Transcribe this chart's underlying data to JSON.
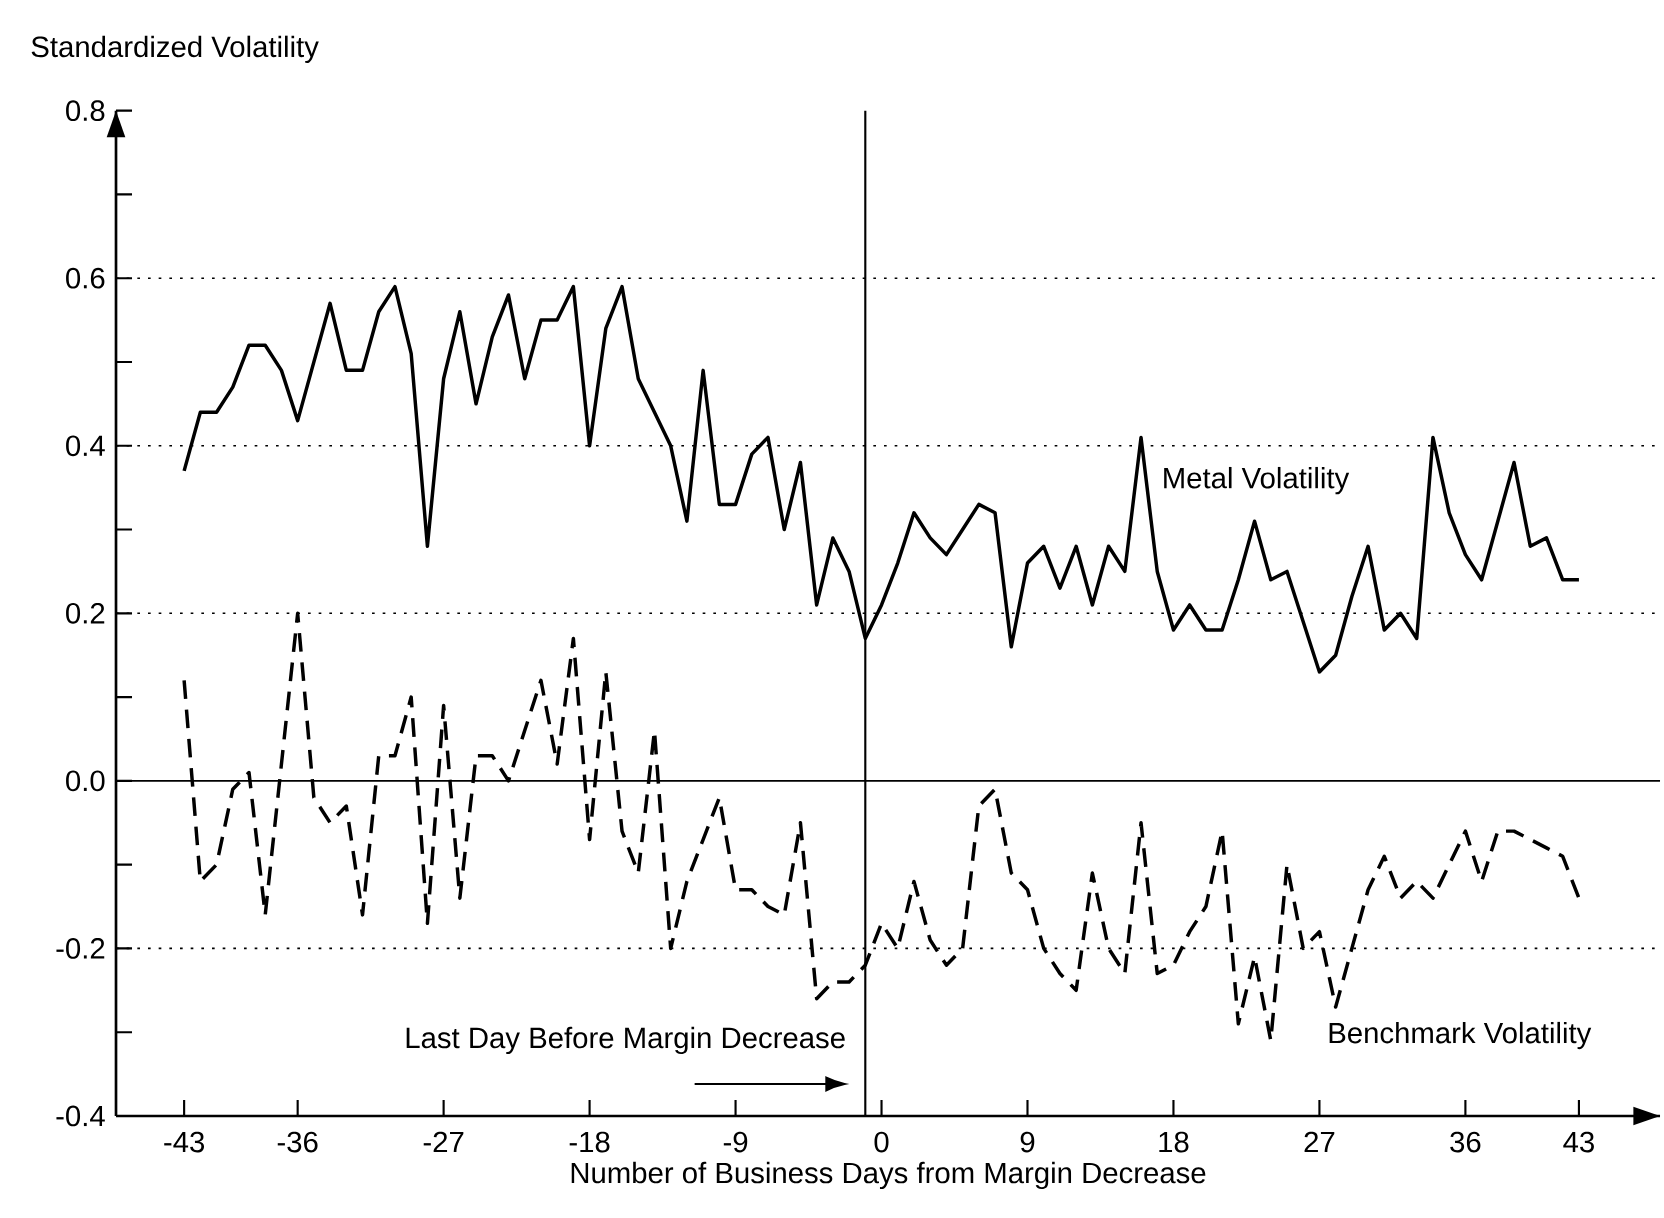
{
  "chart_data": {
    "type": "line",
    "xlabel": "Number of Business Days from Margin Decrease",
    "ylabel": "Standardized Volatility",
    "x": [
      -43,
      -42,
      -41,
      -40,
      -39,
      -38,
      -37,
      -36,
      -35,
      -34,
      -33,
      -32,
      -31,
      -30,
      -29,
      -28,
      -27,
      -26,
      -25,
      -24,
      -23,
      -22,
      -21,
      -20,
      -19,
      -18,
      -17,
      -16,
      -15,
      -14,
      -13,
      -12,
      -11,
      -10,
      -9,
      -8,
      -7,
      -6,
      -5,
      -4,
      -3,
      -2,
      -1,
      0,
      1,
      2,
      3,
      4,
      5,
      6,
      7,
      8,
      9,
      10,
      11,
      12,
      13,
      14,
      15,
      16,
      17,
      18,
      19,
      20,
      21,
      22,
      23,
      24,
      25,
      26,
      27,
      28,
      29,
      30,
      31,
      32,
      33,
      34,
      35,
      36,
      37,
      38,
      39,
      40,
      41,
      42,
      43
    ],
    "series": [
      {
        "name": "Metal Volatility",
        "color": "#000000",
        "line_style": "solid",
        "values": [
          0.37,
          0.44,
          0.44,
          0.47,
          0.52,
          0.52,
          0.49,
          0.43,
          0.5,
          0.57,
          0.49,
          0.49,
          0.56,
          0.59,
          0.51,
          0.28,
          0.48,
          0.56,
          0.45,
          0.53,
          0.58,
          0.48,
          0.55,
          0.55,
          0.59,
          0.4,
          0.54,
          0.59,
          0.48,
          0.44,
          0.4,
          0.31,
          0.49,
          0.33,
          0.33,
          0.39,
          0.41,
          0.3,
          0.38,
          0.21,
          0.29,
          0.25,
          0.17,
          0.21,
          0.26,
          0.32,
          0.29,
          0.27,
          0.3,
          0.33,
          0.32,
          0.16,
          0.26,
          0.28,
          0.23,
          0.28,
          0.21,
          0.28,
          0.25,
          0.41,
          0.25,
          0.18,
          0.21,
          0.18,
          0.18,
          0.24,
          0.31,
          0.24,
          0.25,
          0.19,
          0.13,
          0.15,
          0.22,
          0.28,
          0.18,
          0.2,
          0.17,
          0.41,
          0.32,
          0.27,
          0.24,
          0.31,
          0.38,
          0.28,
          0.29,
          0.24,
          0.24
        ]
      },
      {
        "name": "Benchmark Volatility",
        "color": "#000000",
        "line_style": "dashed",
        "values": [
          0.12,
          -0.12,
          -0.1,
          -0.01,
          0.01,
          -0.16,
          0.02,
          0.2,
          -0.02,
          -0.05,
          -0.03,
          -0.16,
          0.03,
          0.03,
          0.1,
          -0.17,
          0.09,
          -0.14,
          0.03,
          0.03,
          0.0,
          0.06,
          0.12,
          0.02,
          0.17,
          -0.07,
          0.13,
          -0.06,
          -0.11,
          0.06,
          -0.2,
          -0.12,
          -0.07,
          -0.02,
          -0.13,
          -0.13,
          -0.15,
          -0.16,
          -0.05,
          -0.26,
          -0.24,
          -0.24,
          -0.22,
          -0.17,
          -0.2,
          -0.12,
          -0.19,
          -0.22,
          -0.2,
          -0.03,
          -0.01,
          -0.11,
          -0.13,
          -0.2,
          -0.23,
          -0.25,
          -0.11,
          -0.2,
          -0.23,
          -0.05,
          -0.23,
          -0.22,
          -0.18,
          -0.15,
          -0.06,
          -0.29,
          -0.21,
          -0.31,
          -0.1,
          -0.2,
          -0.18,
          -0.27,
          -0.2,
          -0.13,
          -0.09,
          -0.14,
          -0.12,
          -0.14,
          -0.1,
          -0.06,
          -0.12,
          -0.06,
          -0.06,
          -0.07,
          -0.08,
          -0.09,
          -0.14
        ]
      }
    ],
    "xlim": [
      -47.2,
      48
    ],
    "ylim": [
      -0.4,
      0.8
    ],
    "xticks": [
      -43,
      -36,
      -27,
      -18,
      -9,
      0,
      9,
      18,
      27,
      36,
      43
    ],
    "yticks": [
      {
        "value": -0.4,
        "label": "-0.4"
      },
      {
        "value": -0.3,
        "label": null
      },
      {
        "value": -0.2,
        "label": "-0.2"
      },
      {
        "value": -0.1,
        "label": null
      },
      {
        "value": 0,
        "label": "0.0"
      },
      {
        "value": 0.1,
        "label": null
      },
      {
        "value": 0.2,
        "label": "0.2"
      },
      {
        "value": 0.3,
        "label": null
      },
      {
        "value": 0.4,
        "label": "0.4"
      },
      {
        "value": 0.5,
        "label": null
      },
      {
        "value": 0.6,
        "label": "0.6"
      },
      {
        "value": 0.7,
        "label": null
      },
      {
        "value": 0.8,
        "label": "0.8"
      }
    ],
    "ref_lines": [
      {
        "axis": "x",
        "value": -1,
        "label": "Last Day Before Margin Decrease",
        "color": "#000000",
        "line_style": "solid"
      },
      {
        "axis": "y",
        "value": 0,
        "color": "#000000",
        "line_style": "solid"
      },
      {
        "axis": "y",
        "value": -0.2,
        "color": "#000000",
        "line_style": "dotted"
      },
      {
        "axis": "y",
        "value": 0.2,
        "color": "#000000",
        "line_style": "dotted"
      },
      {
        "axis": "y",
        "value": 0.4,
        "color": "#000000",
        "line_style": "dotted"
      },
      {
        "axis": "y",
        "value": 0.6,
        "color": "#000000",
        "line_style": "dotted"
      }
    ],
    "marker": "none"
  }
}
